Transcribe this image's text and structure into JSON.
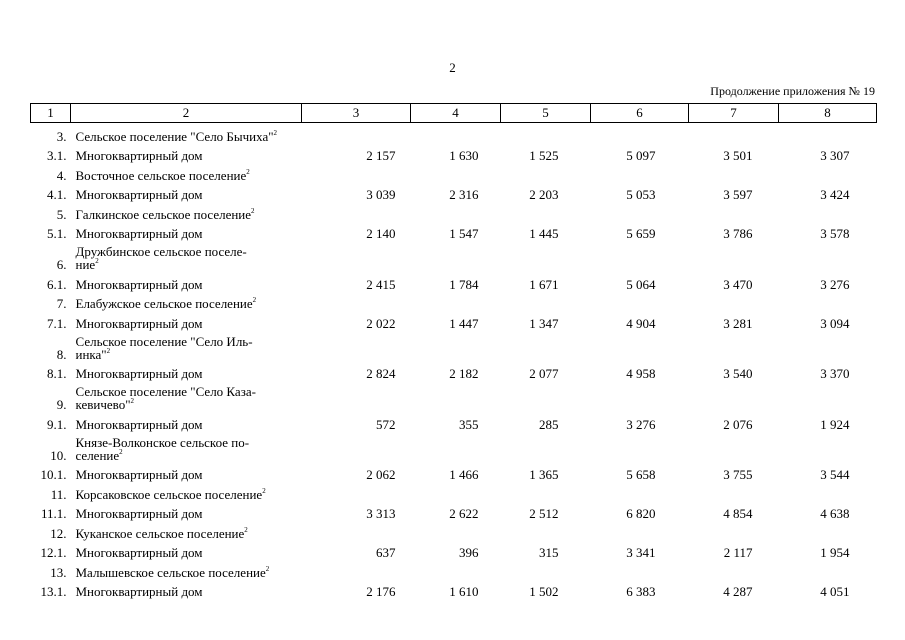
{
  "page": {
    "number": "2",
    "continuation": "Продолжение приложения № 19"
  },
  "table": {
    "headers": [
      "1",
      "2",
      "3",
      "4",
      "5",
      "6",
      "7",
      "8"
    ],
    "footnote_mark": "2",
    "rows": [
      {
        "num": "3.",
        "name": "Сельское поселение \"Село Бычиха\"",
        "footnote": true,
        "values": []
      },
      {
        "num": "3.1.",
        "name": "Многоквартирный дом",
        "footnote": false,
        "values": [
          "2 157",
          "1 630",
          "1 525",
          "5 097",
          "3 501",
          "3 307"
        ]
      },
      {
        "num": "4.",
        "name": "Восточное сельское поселение",
        "footnote": true,
        "values": []
      },
      {
        "num": "4.1.",
        "name": "Многоквартирный дом",
        "footnote": false,
        "values": [
          "3 039",
          "2 316",
          "2 203",
          "5 053",
          "3 597",
          "3 424"
        ]
      },
      {
        "num": "5.",
        "name": "Галкинское сельское поселение",
        "footnote": true,
        "values": []
      },
      {
        "num": "5.1.",
        "name": "Многоквартирный дом",
        "footnote": false,
        "values": [
          "2 140",
          "1 547",
          "1 445",
          "5 659",
          "3 786",
          "3 578"
        ]
      },
      {
        "num": "6.",
        "name": "Дружбинское сельское поселе-\nние",
        "footnote": true,
        "values": []
      },
      {
        "num": "6.1.",
        "name": "Многоквартирный дом",
        "footnote": false,
        "values": [
          "2 415",
          "1 784",
          "1 671",
          "5 064",
          "3 470",
          "3 276"
        ]
      },
      {
        "num": "7.",
        "name": "Елабужское сельское поселение",
        "footnote": true,
        "values": []
      },
      {
        "num": "7.1.",
        "name": "Многоквартирный дом",
        "footnote": false,
        "values": [
          "2 022",
          "1 447",
          "1 347",
          "4 904",
          "3 281",
          "3 094"
        ]
      },
      {
        "num": "8.",
        "name": "Сельское поселение \"Село Иль-\nинка\"",
        "footnote": true,
        "values": []
      },
      {
        "num": "8.1.",
        "name": "Многоквартирный дом",
        "footnote": false,
        "values": [
          "2 824",
          "2 182",
          "2 077",
          "4 958",
          "3 540",
          "3 370"
        ]
      },
      {
        "num": "9.",
        "name": "Сельское поселение \"Село Каза-\nкевичево\"",
        "footnote": true,
        "values": []
      },
      {
        "num": "9.1.",
        "name": "Многоквартирный дом",
        "footnote": false,
        "values": [
          "572",
          "355",
          "285",
          "3 276",
          "2 076",
          "1 924"
        ]
      },
      {
        "num": "10.",
        "name": "Князе-Волконское сельское по-\nселение",
        "footnote": true,
        "values": []
      },
      {
        "num": "10.1.",
        "name": "Многоквартирный дом",
        "footnote": false,
        "values": [
          "2 062",
          "1 466",
          "1 365",
          "5 658",
          "3 755",
          "3 544"
        ]
      },
      {
        "num": "11.",
        "name": "Корсаковское сельское поселение",
        "footnote": true,
        "values": []
      },
      {
        "num": "11.1.",
        "name": "Многоквартирный дом",
        "footnote": false,
        "values": [
          "3 313",
          "2 622",
          "2 512",
          "6 820",
          "4 854",
          "4 638"
        ]
      },
      {
        "num": "12.",
        "name": "Куканское сельское поселение",
        "footnote": true,
        "values": []
      },
      {
        "num": "12.1.",
        "name": "Многоквартирный дом",
        "footnote": false,
        "values": [
          "637",
          "396",
          "315",
          "3 341",
          "2 117",
          "1 954"
        ]
      },
      {
        "num": "13.",
        "name": "Малышевское сельское поселение",
        "footnote": true,
        "values": []
      },
      {
        "num": "13.1.",
        "name": "Многоквартирный дом",
        "footnote": false,
        "values": [
          "2 176",
          "1 610",
          "1 502",
          "6 383",
          "4 287",
          "4 051"
        ]
      }
    ]
  }
}
